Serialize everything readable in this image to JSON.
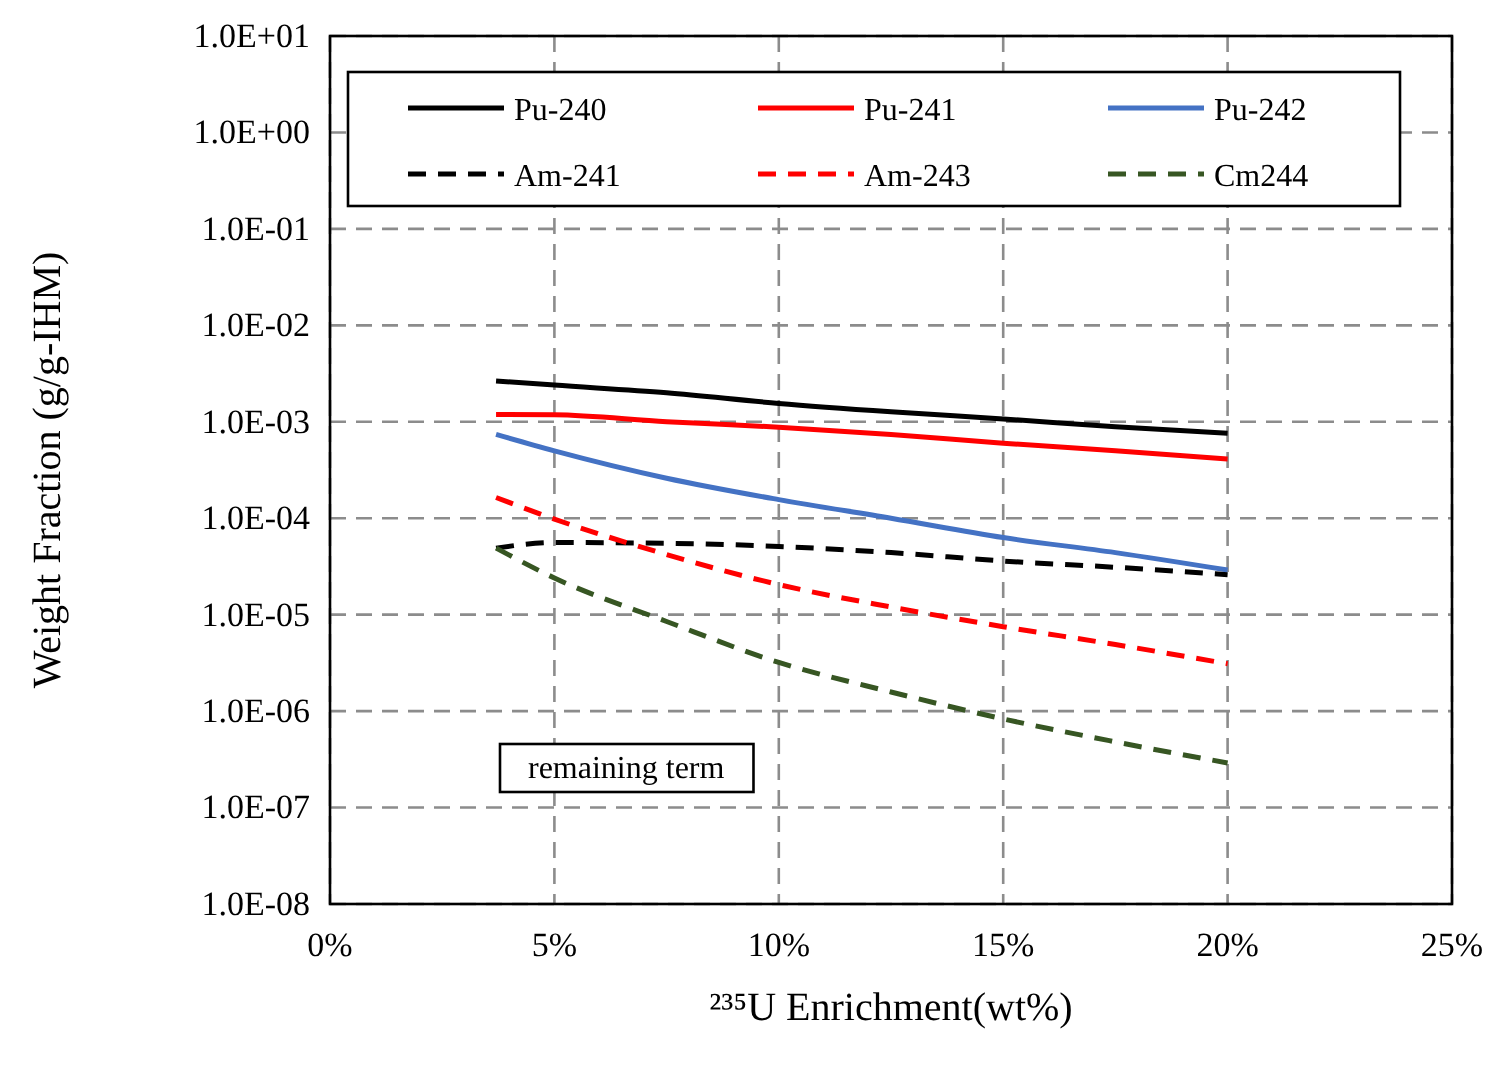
{
  "chart_data": {
    "type": "line",
    "xlabel": "²³⁵U Enrichment(wt%)",
    "ylabel": "Weight Fraction (g/g-IHM)",
    "x": [
      3.7,
      5,
      7.5,
      10,
      12.5,
      15,
      17.5,
      20
    ],
    "series": [
      {
        "name": "Pu-240",
        "color": "#000000",
        "line_style": "solid",
        "values": [
          0.00265,
          0.0024,
          0.002,
          0.00155,
          0.00127,
          0.00107,
          0.00089,
          0.00076
        ]
      },
      {
        "name": "Pu-241",
        "color": "#ff0000",
        "line_style": "solid",
        "values": [
          0.00119,
          0.00118,
          0.001,
          0.00088,
          0.00074,
          0.0006,
          0.0005,
          0.00041
        ]
      },
      {
        "name": "Pu-242",
        "color": "#4472c4",
        "line_style": "solid",
        "values": [
          0.00074,
          0.0005,
          0.00026,
          0.000156,
          0.0001,
          6.3e-05,
          4.4e-05,
          2.9e-05
        ]
      },
      {
        "name": "Am-241",
        "color": "#000000",
        "line_style": "dashed",
        "values": [
          4.9e-05,
          5.6e-05,
          5.5e-05,
          5.1e-05,
          4.4e-05,
          3.6e-05,
          3.1e-05,
          2.6e-05
        ]
      },
      {
        "name": "Am-243",
        "color": "#ff0000",
        "line_style": "dashed",
        "values": [
          0.000164,
          9.8e-05,
          4.2e-05,
          2.05e-05,
          1.2e-05,
          7.5e-06,
          4.9e-06,
          3.1e-06
        ]
      },
      {
        "name": "Cm244",
        "color": "#375623",
        "line_style": "dashed",
        "values": [
          4.9e-05,
          2.4e-05,
          8.5e-06,
          3.2e-06,
          1.58e-06,
          8.3e-07,
          4.8e-07,
          2.9e-07
        ]
      }
    ],
    "xlim": [
      0,
      25
    ],
    "xticks": [
      {
        "value": 0,
        "label": "0%"
      },
      {
        "value": 5,
        "label": "5%"
      },
      {
        "value": 10,
        "label": "10%"
      },
      {
        "value": 15,
        "label": "15%"
      },
      {
        "value": 20,
        "label": "20%"
      },
      {
        "value": 25,
        "label": "25%"
      }
    ],
    "ylim": [
      1e-08,
      10
    ],
    "yticks": [
      {
        "value": 1e-08,
        "label": "1.0E-08"
      },
      {
        "value": 1e-07,
        "label": "1.0E-07"
      },
      {
        "value": 1e-06,
        "label": "1.0E-06"
      },
      {
        "value": 1e-05,
        "label": "1.0E-05"
      },
      {
        "value": 0.0001,
        "label": "1.0E-04"
      },
      {
        "value": 0.001,
        "label": "1.0E-03"
      },
      {
        "value": 0.01,
        "label": "1.0E-02"
      },
      {
        "value": 0.1,
        "label": "1.0E-01"
      },
      {
        "value": 1,
        "label": "1.0E+00"
      },
      {
        "value": 10,
        "label": "1.0E+01"
      }
    ],
    "log": "y",
    "grid": true,
    "legend": "top",
    "marker": "none",
    "annotations": [
      "remaining term"
    ]
  }
}
